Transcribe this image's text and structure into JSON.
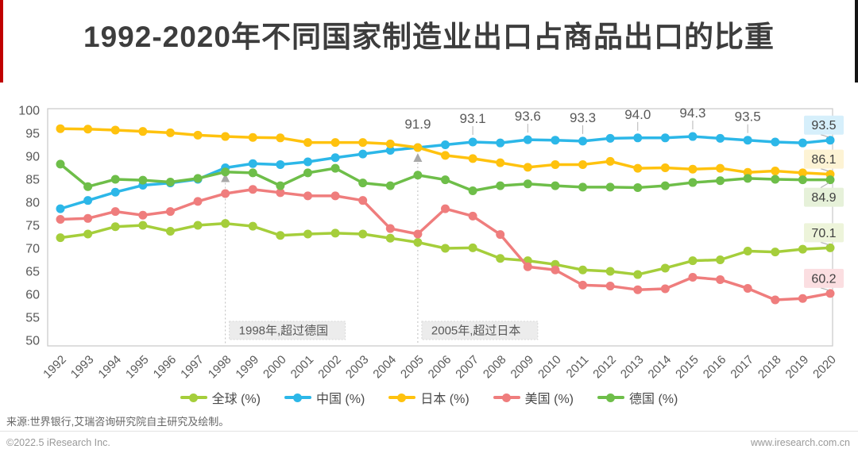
{
  "header": {
    "title": "1992-2020年不同国家制造业出口占商品出口的比重",
    "accent_left_color": "#c00000",
    "accent_right_color": "#141414"
  },
  "chart_data": {
    "type": "line",
    "title": "1992-2020年不同国家制造业出口占商品出口的比重",
    "xlabel": "",
    "ylabel": "",
    "ylim": [
      50,
      100
    ],
    "ytick_step": 5,
    "grid": false,
    "legend_position": "bottom",
    "x": [
      1992,
      1993,
      1994,
      1995,
      1996,
      1997,
      1998,
      1999,
      2000,
      2001,
      2002,
      2003,
      2004,
      2005,
      2006,
      2007,
      2008,
      2009,
      2010,
      2011,
      2012,
      2013,
      2014,
      2015,
      2016,
      2017,
      2018,
      2019,
      2020
    ],
    "series": [
      {
        "key": "global",
        "name": "全球 (%)",
        "color": "#a5ce3b",
        "values": [
          72.3,
          73.1,
          74.7,
          75.0,
          73.7,
          75.0,
          75.4,
          74.8,
          72.8,
          73.1,
          73.3,
          73.1,
          72.2,
          71.3,
          70.0,
          70.1,
          67.8,
          67.3,
          66.5,
          65.3,
          65.0,
          64.3,
          65.7,
          67.3,
          67.5,
          69.4,
          69.2,
          69.8,
          70.1
        ]
      },
      {
        "key": "china",
        "name": "中国 (%)",
        "color": "#2cb7e8",
        "values": [
          78.6,
          80.4,
          82.2,
          83.7,
          84.2,
          85.0,
          87.5,
          88.4,
          88.2,
          88.8,
          89.7,
          90.5,
          91.3,
          91.9,
          92.5,
          93.1,
          92.9,
          93.6,
          93.5,
          93.3,
          93.9,
          94.0,
          94.0,
          94.3,
          93.9,
          93.5,
          93.1,
          92.9,
          93.5
        ]
      },
      {
        "key": "japan",
        "name": "日本 (%)",
        "color": "#ffc20e",
        "values": [
          96.0,
          95.9,
          95.7,
          95.4,
          95.1,
          94.6,
          94.3,
          94.1,
          94.0,
          93.0,
          93.0,
          93.0,
          92.7,
          91.9,
          90.2,
          89.5,
          88.6,
          87.6,
          88.2,
          88.2,
          88.9,
          87.4,
          87.5,
          87.2,
          87.4,
          86.5,
          86.8,
          86.4,
          86.1
        ]
      },
      {
        "key": "usa",
        "name": "美国 (%)",
        "color": "#ef7d7d",
        "values": [
          76.3,
          76.5,
          78.0,
          77.2,
          78.0,
          80.2,
          81.9,
          82.8,
          82.1,
          81.4,
          81.4,
          80.4,
          74.3,
          73.1,
          78.6,
          77.0,
          73.0,
          66.0,
          65.3,
          62.0,
          61.8,
          61.0,
          61.2,
          63.7,
          63.2,
          61.3,
          58.8,
          59.1,
          60.2
        ]
      },
      {
        "key": "germany",
        "name": "德国 (%)",
        "color": "#6ebe49",
        "values": [
          88.3,
          83.4,
          85.0,
          84.8,
          84.4,
          85.2,
          86.6,
          86.4,
          83.6,
          86.4,
          87.4,
          84.2,
          83.6,
          85.9,
          84.9,
          82.5,
          83.6,
          84.0,
          83.6,
          83.3,
          83.3,
          83.2,
          83.6,
          84.3,
          84.7,
          85.2,
          85.0,
          84.9,
          84.9
        ]
      }
    ],
    "point_labels": {
      "series_key": "china",
      "items": [
        {
          "year": 2005,
          "text": "91.9"
        },
        {
          "year": 2007,
          "text": "93.1"
        },
        {
          "year": 2009,
          "text": "93.6"
        },
        {
          "year": 2011,
          "text": "93.3"
        },
        {
          "year": 2013,
          "text": "94.0"
        },
        {
          "year": 2015,
          "text": "94.3"
        },
        {
          "year": 2017,
          "text": "93.5"
        }
      ]
    },
    "end_labels": [
      {
        "series_key": "china",
        "text": "93.5",
        "bg": "#d6effb",
        "side": "above"
      },
      {
        "series_key": "japan",
        "text": "86.1",
        "bg": "#fdf3d4",
        "side": "above"
      },
      {
        "series_key": "germany",
        "text": "84.9",
        "bg": "#e6f1d9",
        "side": "below"
      },
      {
        "series_key": "global",
        "text": "70.1",
        "bg": "#edf4da",
        "side": "above"
      },
      {
        "series_key": "usa",
        "text": "60.2",
        "bg": "#fbdee1",
        "side": "above"
      }
    ],
    "annotations": [
      {
        "year": 1998,
        "series_key": "china",
        "label": "1998年,超过德国"
      },
      {
        "year": 2005,
        "series_key": "china",
        "label": "2005年,超过日本"
      }
    ]
  },
  "footer": {
    "source": "来源:世界银行,艾瑞咨询研究院自主研究及绘制。",
    "copyright": "©2022.5 iResearch Inc.",
    "website": "www.iresearch.com.cn"
  }
}
